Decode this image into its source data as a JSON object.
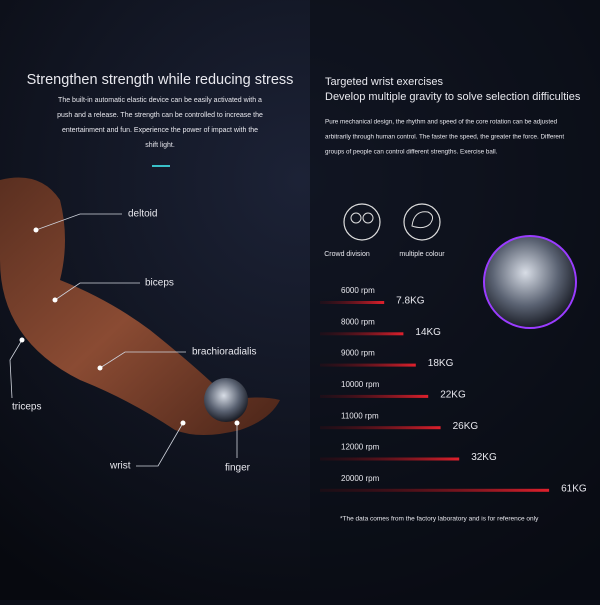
{
  "left": {
    "title": "Strengthen strength while reducing stress",
    "paragraph": [
      "The built-in automatic elastic device can be easily activated with a",
      "push and a release. The strength can be controlled to increase the",
      "entertainment and fun. Experience the power of impact with the",
      "shift light."
    ],
    "muscles": [
      "deltoid",
      "biceps",
      "brachioradialis",
      "triceps",
      "wrist",
      "finger"
    ]
  },
  "right": {
    "title": [
      "Targeted wrist exercises",
      "Develop multiple gravity to solve selection difficulties"
    ],
    "paragraph": [
      "Pure mechanical design, the rhythm and speed of the core rotation can be adjusted",
      "arbitrarily through human control. The faster the speed, the greater the force. Different",
      "groups of people can control different strengths. Exercise ball."
    ],
    "icons": [
      "Crowd division",
      "multiple colour"
    ],
    "levels": [
      {
        "speed": "6000 rpm",
        "weight": {
          "value": 7.8,
          "label": "7.8KG"
        }
      },
      {
        "speed": "8000 rpm",
        "weight": {
          "value": 14,
          "label": "14KG"
        }
      },
      {
        "speed": "9000 rpm",
        "weight": {
          "value": 18,
          "label": "18KG"
        }
      },
      {
        "speed": "10000 rpm",
        "weight": {
          "value": 22,
          "label": "22KG"
        }
      },
      {
        "speed": "11000 rpm",
        "weight": {
          "value": 26,
          "label": "26KG"
        }
      },
      {
        "speed": "12000 rpm",
        "weight": {
          "value": 32,
          "label": "32KG"
        }
      },
      {
        "speed": "20000 rpm",
        "weight": {
          "value": 61,
          "label": "61KG"
        }
      }
    ],
    "footnote": "*The data comes from the factory laboratory and is for reference only"
  }
}
